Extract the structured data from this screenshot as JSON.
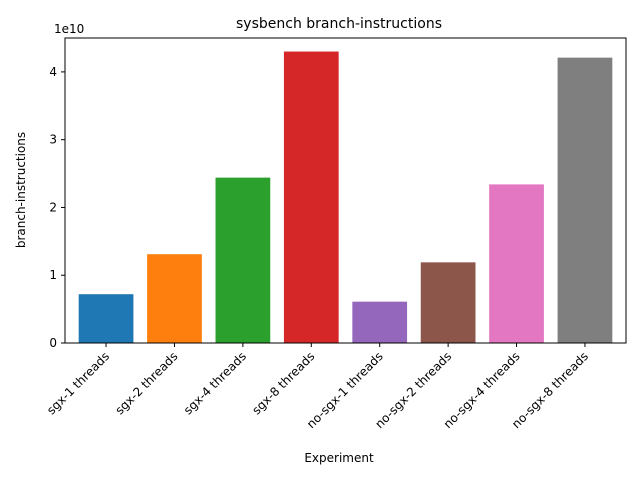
{
  "chart_data": {
    "type": "bar",
    "title": "sysbench branch-instructions",
    "xlabel": "Experiment",
    "ylabel": "branch-instructions",
    "offset_label": "1e10",
    "scale": 10000000000,
    "categories": [
      "sgx-1 threads",
      "sgx-2 threads",
      "sgx-4 threads",
      "sgx-8 threads",
      "no-sgx-1 threads",
      "no-sgx-2 threads",
      "no-sgx-4 threads",
      "no-sgx-8 threads"
    ],
    "values": [
      7200000000,
      13100000000,
      24400000000,
      43000000000,
      6100000000,
      11900000000,
      23400000000,
      42100000000
    ],
    "colors": [
      "#1f77b4",
      "#ff7f0e",
      "#2ca02c",
      "#d62728",
      "#9467bd",
      "#8c564b",
      "#e377c2",
      "#7f7f7f"
    ],
    "yticks": [
      "0",
      "1",
      "2",
      "3",
      "4"
    ],
    "ylim": [
      0,
      45000000000
    ],
    "grid": false,
    "legend": "none"
  }
}
